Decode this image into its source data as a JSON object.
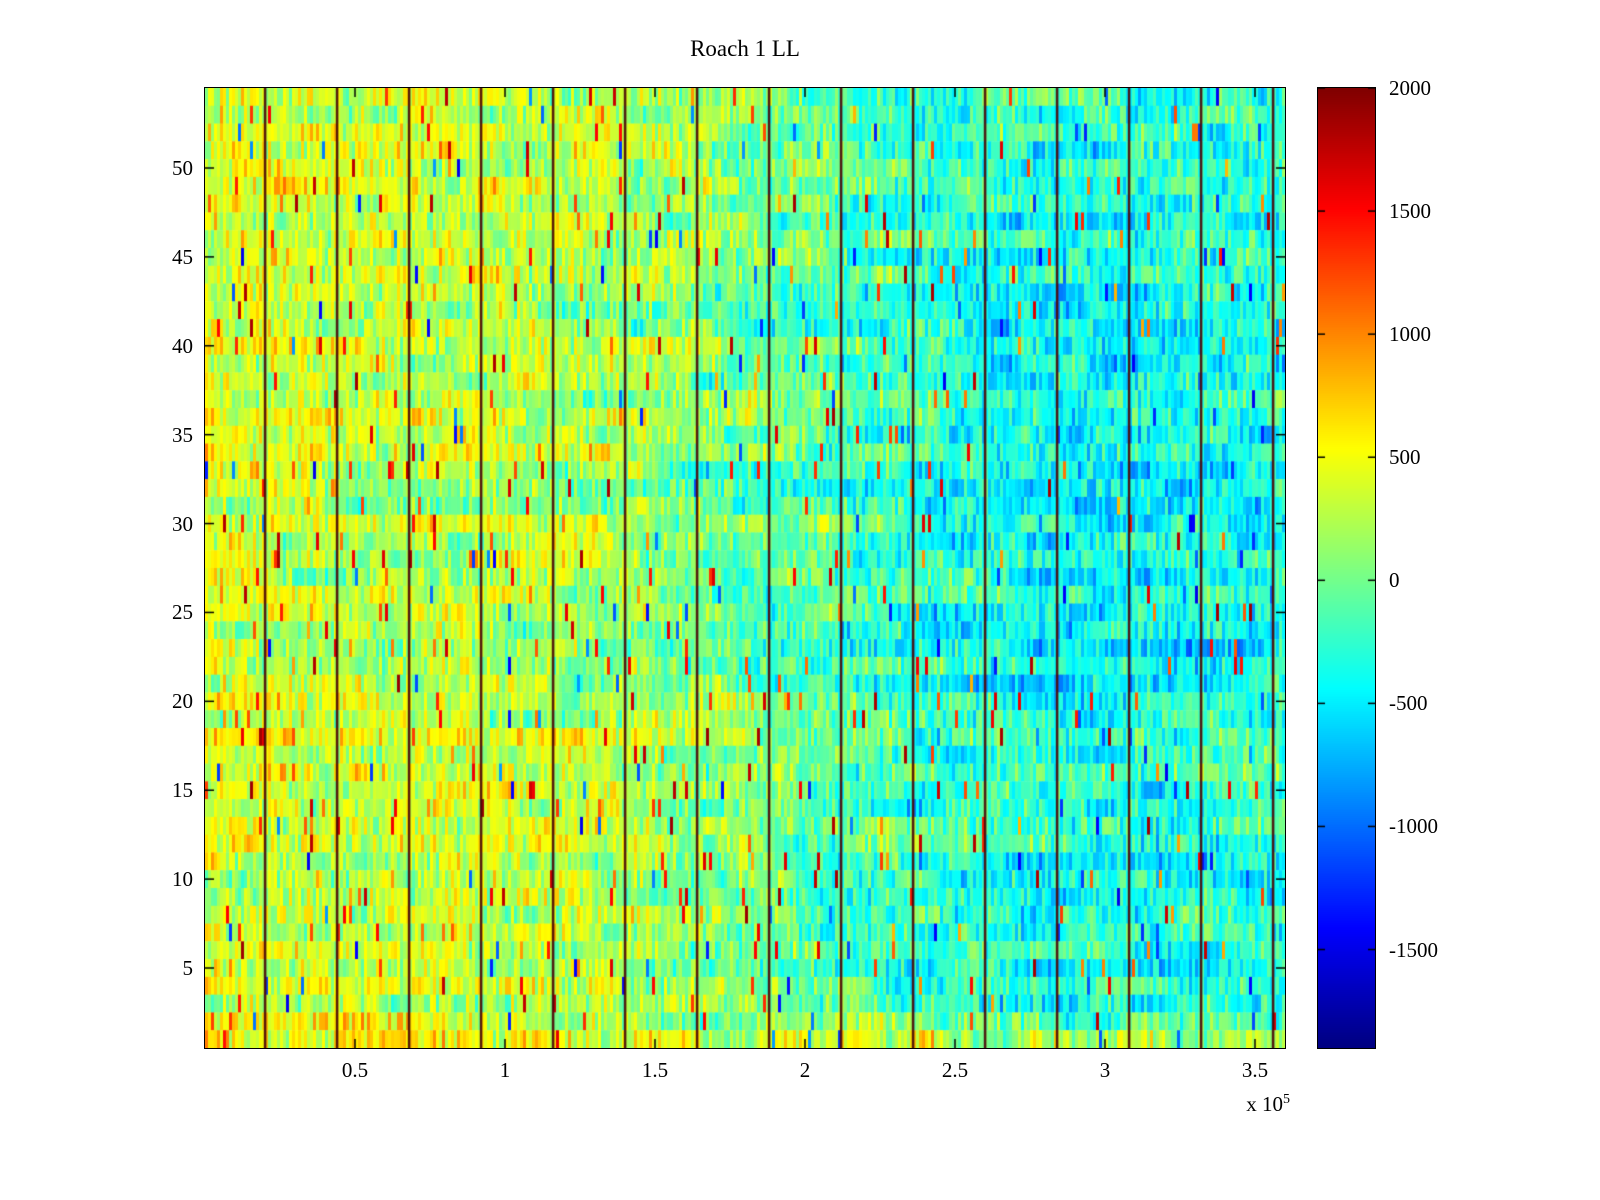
{
  "chart_data": {
    "type": "heatmap",
    "title": "Roach 1 LL",
    "x_unit_exponent": {
      "prefix": "x 10",
      "exp": "5"
    },
    "x_range": [
      0,
      3.6
    ],
    "x_ticks": [
      0.5,
      1,
      1.5,
      2,
      2.5,
      3,
      3.5
    ],
    "x_tick_labels": [
      "0.5",
      "1",
      "1.5",
      "2",
      "2.5",
      "3",
      "3.5"
    ],
    "y_range": [
      0.5,
      54.5
    ],
    "y_ticks": [
      5,
      10,
      15,
      20,
      25,
      30,
      35,
      40,
      45,
      50
    ],
    "rows": 54,
    "clim": [
      -1900,
      2000
    ],
    "colorbar_ticks": [
      2000,
      1500,
      1000,
      500,
      0,
      -500,
      -1000,
      -1500
    ],
    "vlines": {
      "x": [
        0.2,
        0.44,
        0.68,
        0.92,
        1.16,
        1.4,
        1.64,
        1.88,
        2.12,
        2.36,
        2.6,
        2.84,
        3.08,
        3.32,
        3.56
      ],
      "color": "#4a0808"
    },
    "trend": {
      "x": [
        0,
        0.4,
        0.8,
        1.2,
        1.6,
        2.0,
        2.4,
        2.8,
        3.2,
        3.6
      ],
      "y": [
        1,
        3,
        11,
        22,
        32,
        43,
        54
      ],
      "values": [
        [
          650,
          600,
          580,
          560,
          470,
          400,
          360,
          320,
          320,
          360
        ],
        [
          420,
          340,
          340,
          300,
          150,
          -60,
          -230,
          -330,
          -330,
          -230
        ],
        [
          390,
          310,
          330,
          280,
          130,
          -80,
          -250,
          -350,
          -350,
          -240
        ],
        [
          360,
          290,
          300,
          250,
          100,
          -100,
          -280,
          -380,
          -380,
          -300
        ],
        [
          390,
          300,
          280,
          230,
          80,
          -130,
          -310,
          -490,
          -440,
          -300
        ],
        [
          410,
          330,
          300,
          260,
          110,
          -90,
          -250,
          -400,
          -400,
          -280
        ],
        [
          370,
          310,
          290,
          260,
          160,
          -40,
          -200,
          -340,
          -340,
          -250
        ]
      ]
    },
    "noise": {
      "seed": 20,
      "amplitude": 480,
      "patch": 260,
      "row_offset": 120,
      "spike_chance": 0.02
    }
  }
}
